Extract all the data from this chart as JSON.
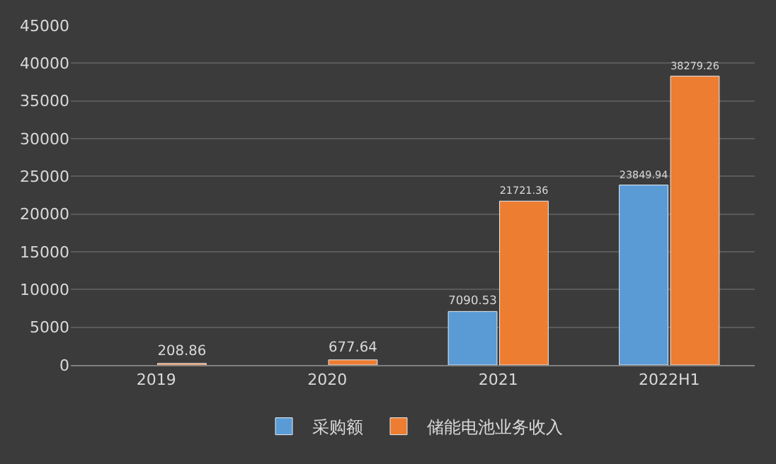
{
  "chart_data": {
    "type": "bar",
    "categories": [
      "2019",
      "2020",
      "2021",
      "2022H1"
    ],
    "series": [
      {
        "name": "采购额",
        "color": "#5b9bd5",
        "values": [
          null,
          null,
          7090.53,
          23849.94
        ]
      },
      {
        "name": "储能电池业务收入",
        "color": "#ed7d31",
        "values": [
          208.86,
          677.64,
          21721.36,
          38279.26
        ]
      }
    ],
    "ylim": [
      0,
      45000
    ],
    "yticks": [
      0,
      5000,
      10000,
      15000,
      20000,
      25000,
      30000,
      35000,
      40000,
      45000
    ],
    "grid": "y",
    "legend": "bottom",
    "data_labels": true
  }
}
